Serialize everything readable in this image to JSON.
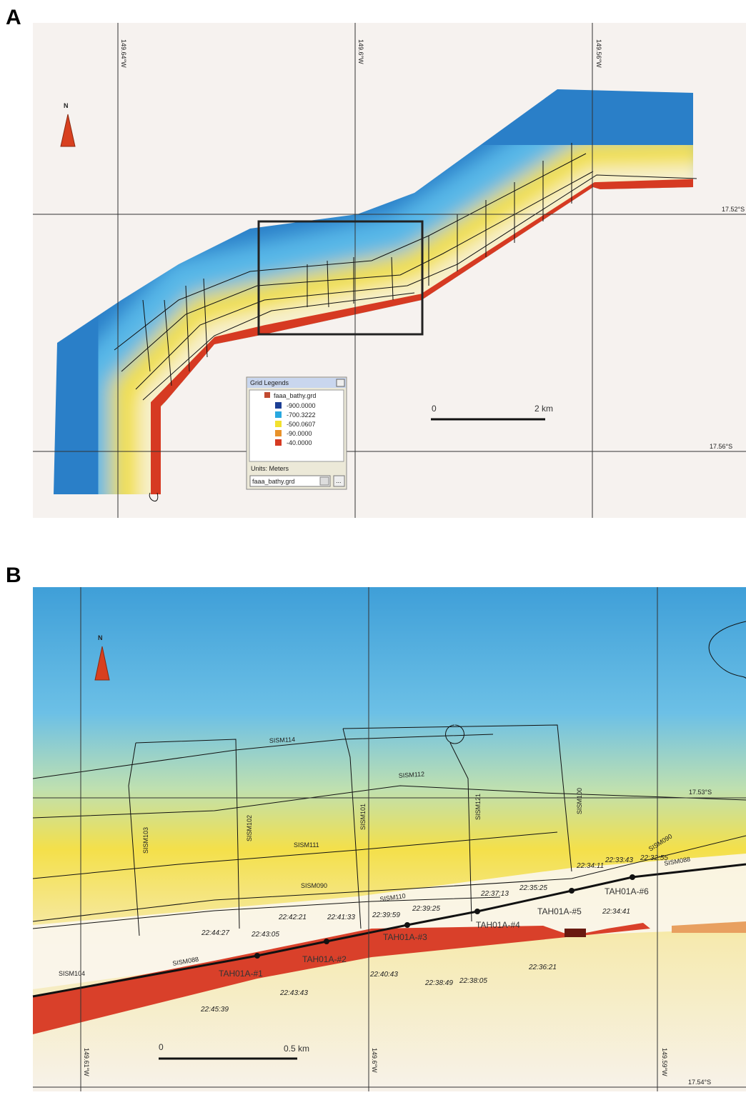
{
  "panel_a": {
    "label": "A",
    "north": "N",
    "longitudes": [
      "149.64°W",
      "149.6°W",
      "149.56°W"
    ],
    "latitudes": [
      "17.52°S",
      "17.56°S"
    ],
    "scale": {
      "start": "0",
      "end": "2 km"
    },
    "legend": {
      "title": "Grid Legends",
      "layer": "faaa_bathy.grd",
      "entries": [
        {
          "value": "-900.0000",
          "color": "#1d3f95"
        },
        {
          "value": "-700.3222",
          "color": "#29a8e0"
        },
        {
          "value": "-500.0607",
          "color": "#f2e12e"
        },
        {
          "value": "-90.0000",
          "color": "#e8922a"
        },
        {
          "value": "-40.0000",
          "color": "#d63a22"
        }
      ],
      "units": "Units: Meters",
      "dropdown": "faaa_bathy.grd",
      "button": "..."
    }
  },
  "panel_b": {
    "label": "B",
    "north": "N",
    "longitudes": [
      "149.61°W",
      "149.6°W",
      "149.59°W"
    ],
    "latitudes": [
      "17.53°S",
      "17.54°S"
    ],
    "scale": {
      "start": "0",
      "end": "0.5 km"
    },
    "lines": [
      "SISM114",
      "SISM112",
      "SISM111",
      "SISM090",
      "SISM110",
      "SISM103",
      "SISM102",
      "SISM101",
      "SISM121",
      "SISM100",
      "SISM090",
      "SISM088",
      "SISM104",
      "SISM088"
    ],
    "times": [
      "22:44:27",
      "22:43:05",
      "22:42:21",
      "22:41:33",
      "22:39:59",
      "22:39:25",
      "22:37:13",
      "22:35:25",
      "22:34:11",
      "22:33:43",
      "22:32:55",
      "22:34:41",
      "22:36:21",
      "22:38:05",
      "22:38:49",
      "22:40:43",
      "22:43:43",
      "22:45:39"
    ],
    "stations": [
      "TAH01A-#1",
      "TAH01A-#2",
      "TAH01A-#3",
      "TAH01A-#4",
      "TAH01A-#5",
      "TAH01A-#6"
    ]
  }
}
